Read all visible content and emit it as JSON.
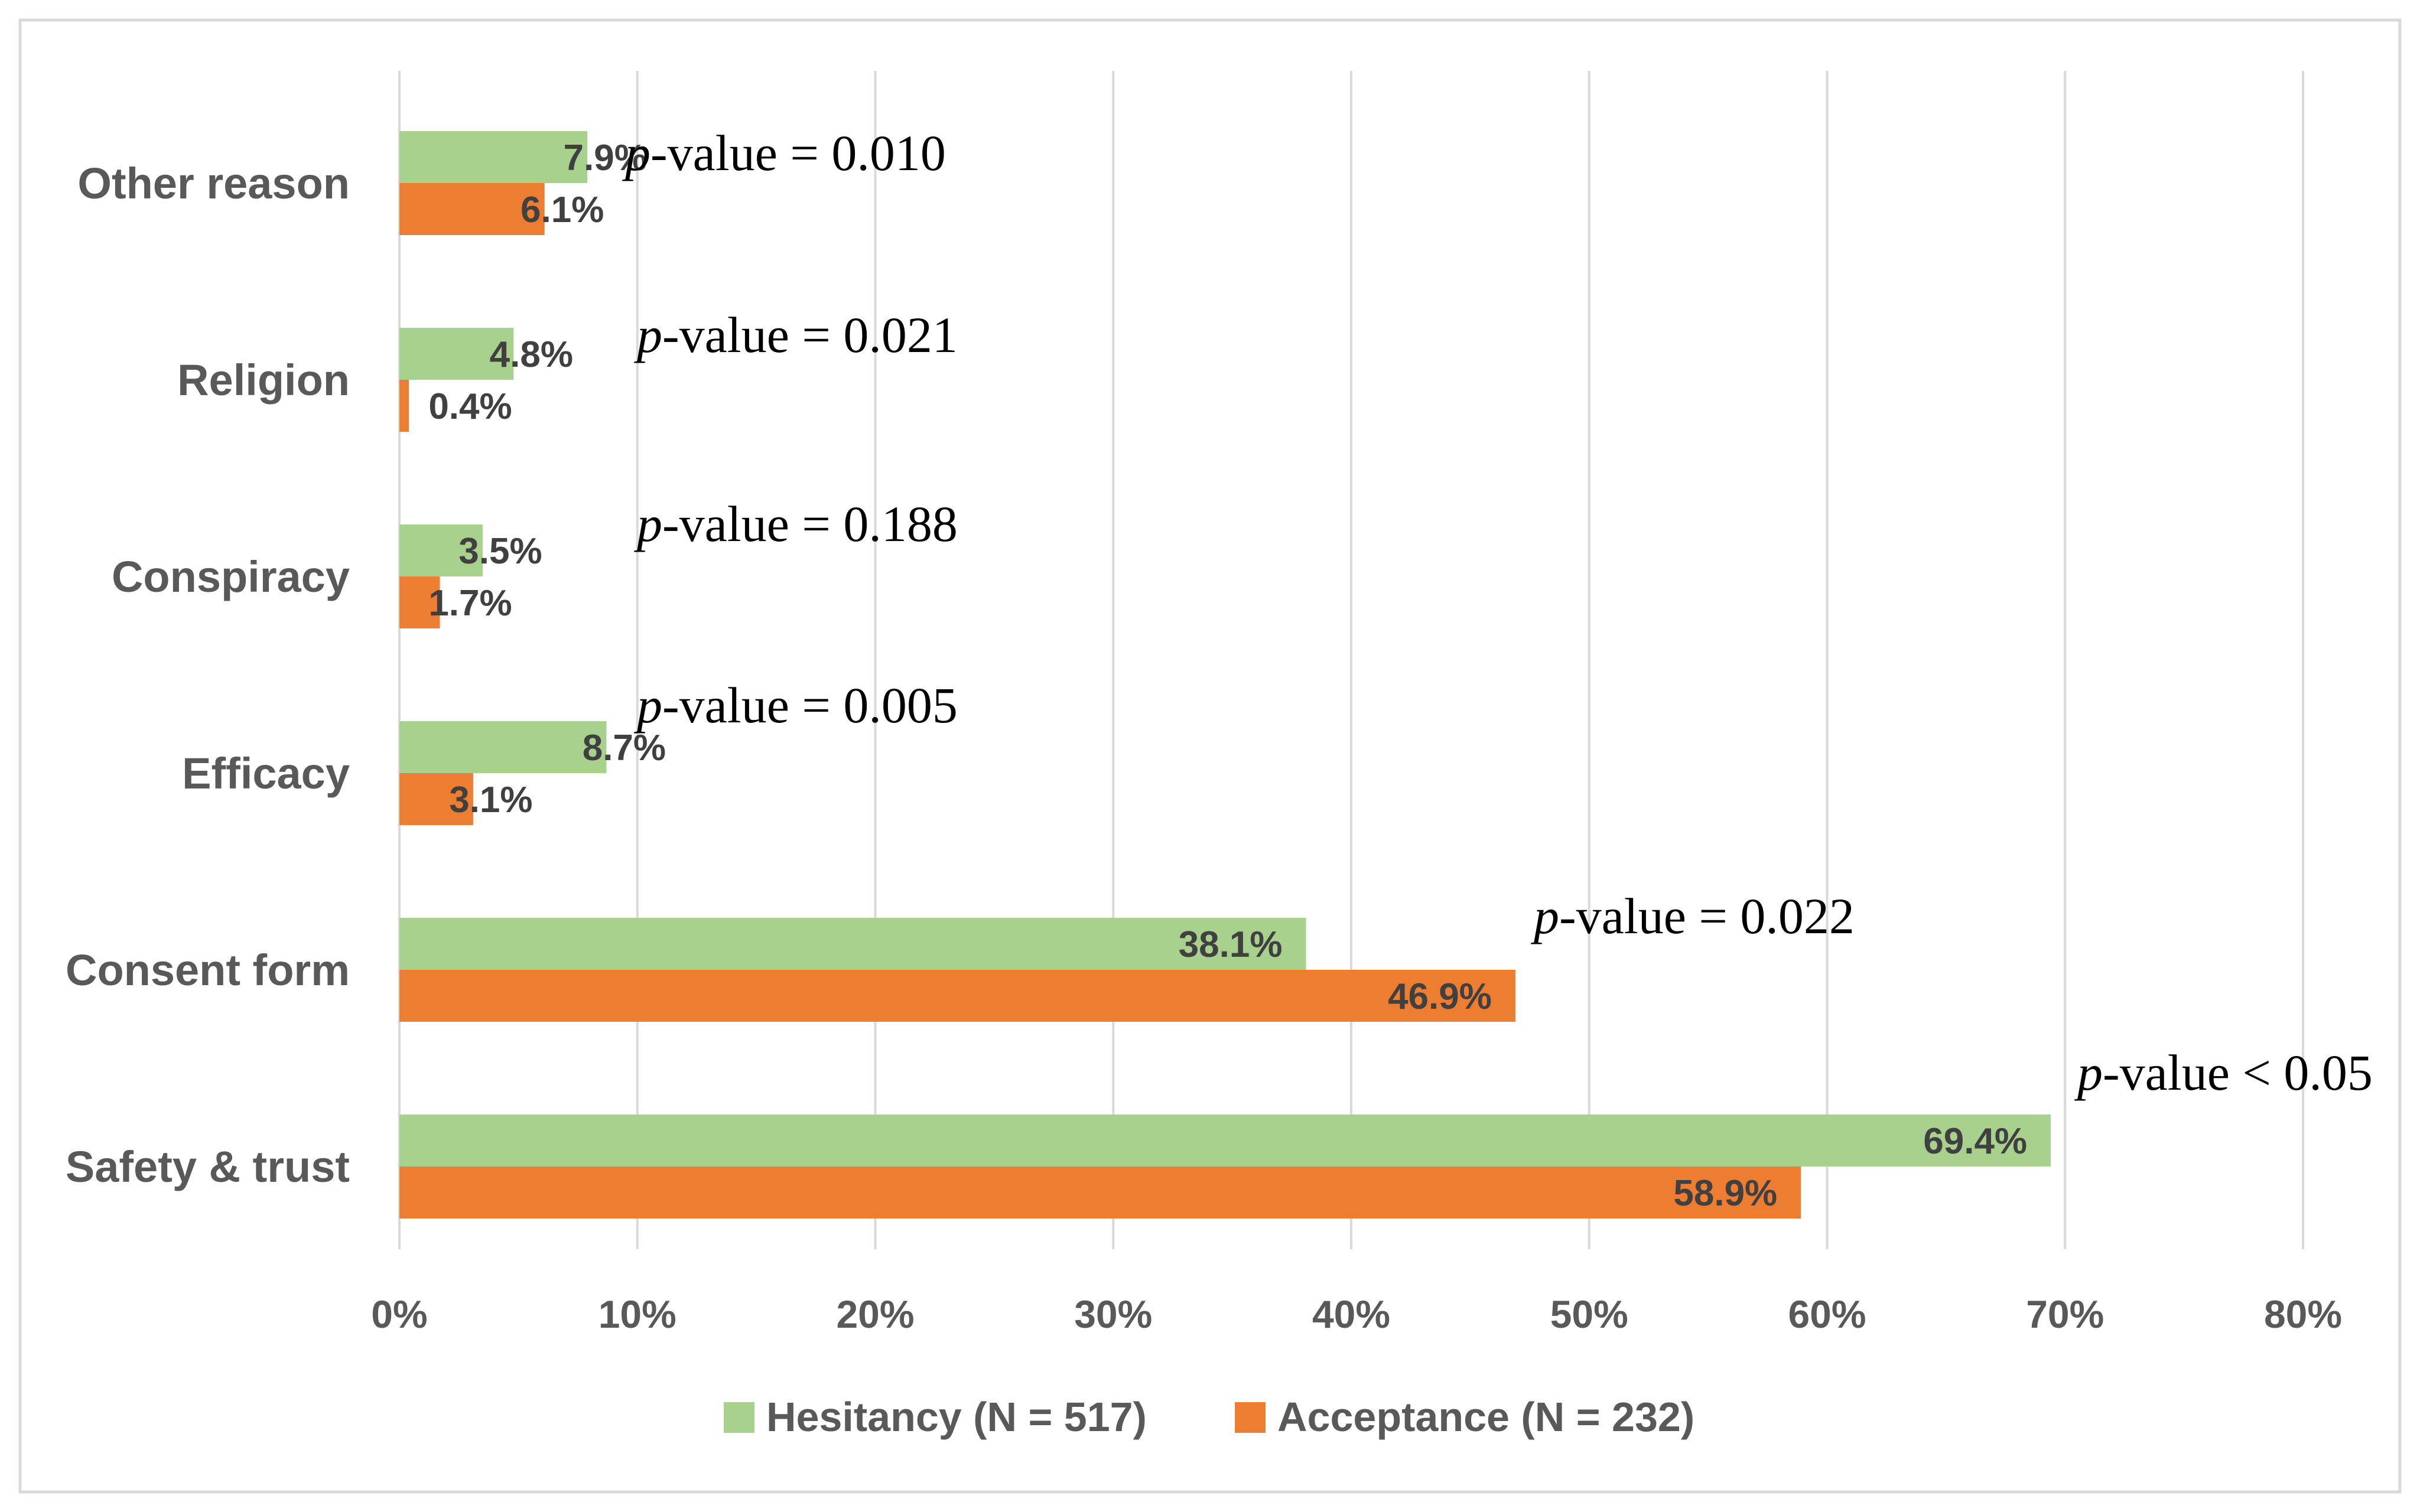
{
  "chart_data": {
    "type": "bar",
    "orientation": "horizontal",
    "categories": [
      "Other reason",
      "Religion",
      "Conspiracy",
      "Efficacy",
      "Consent form",
      "Safety & trust"
    ],
    "series": [
      {
        "name": "Hesitancy (N = 517)",
        "color": "#a9d18e",
        "values": [
          7.9,
          4.8,
          3.5,
          8.7,
          38.1,
          69.4
        ],
        "labels": [
          "7.9%",
          "4.8%",
          "3.5%",
          "8.7%",
          "38.1%",
          "69.4%"
        ]
      },
      {
        "name": "Acceptance (N = 232)",
        "color": "#ed7d31",
        "values": [
          6.1,
          0.4,
          1.7,
          3.1,
          46.9,
          58.9
        ],
        "labels": [
          "6.1%",
          "0.4%",
          "1.7%",
          "3.1%",
          "46.9%",
          "58.9%"
        ]
      }
    ],
    "annotations": [
      {
        "category": "Other reason",
        "prefix": "p",
        "text": "-value = 0.010"
      },
      {
        "category": "Religion",
        "prefix": "p",
        "text": "-value = 0.021"
      },
      {
        "category": "Conspiracy",
        "prefix": "p",
        "text": "-value = 0.188"
      },
      {
        "category": "Efficacy",
        "prefix": "p",
        "text": "-value = 0.005"
      },
      {
        "category": "Consent form",
        "prefix": "p",
        "text": "-value = 0.022"
      },
      {
        "category": "Safety & trust",
        "prefix": "p",
        "text": "-value < 0.05"
      }
    ],
    "xlim": [
      0,
      80
    ],
    "xticks": [
      0,
      10,
      20,
      30,
      40,
      50,
      60,
      70,
      80
    ],
    "xtick_labels": [
      "0%",
      "10%",
      "20%",
      "30%",
      "40%",
      "50%",
      "60%",
      "70%",
      "80%"
    ],
    "grid": true,
    "legend_position": "bottom",
    "title": "",
    "xlabel": "",
    "ylabel": ""
  }
}
